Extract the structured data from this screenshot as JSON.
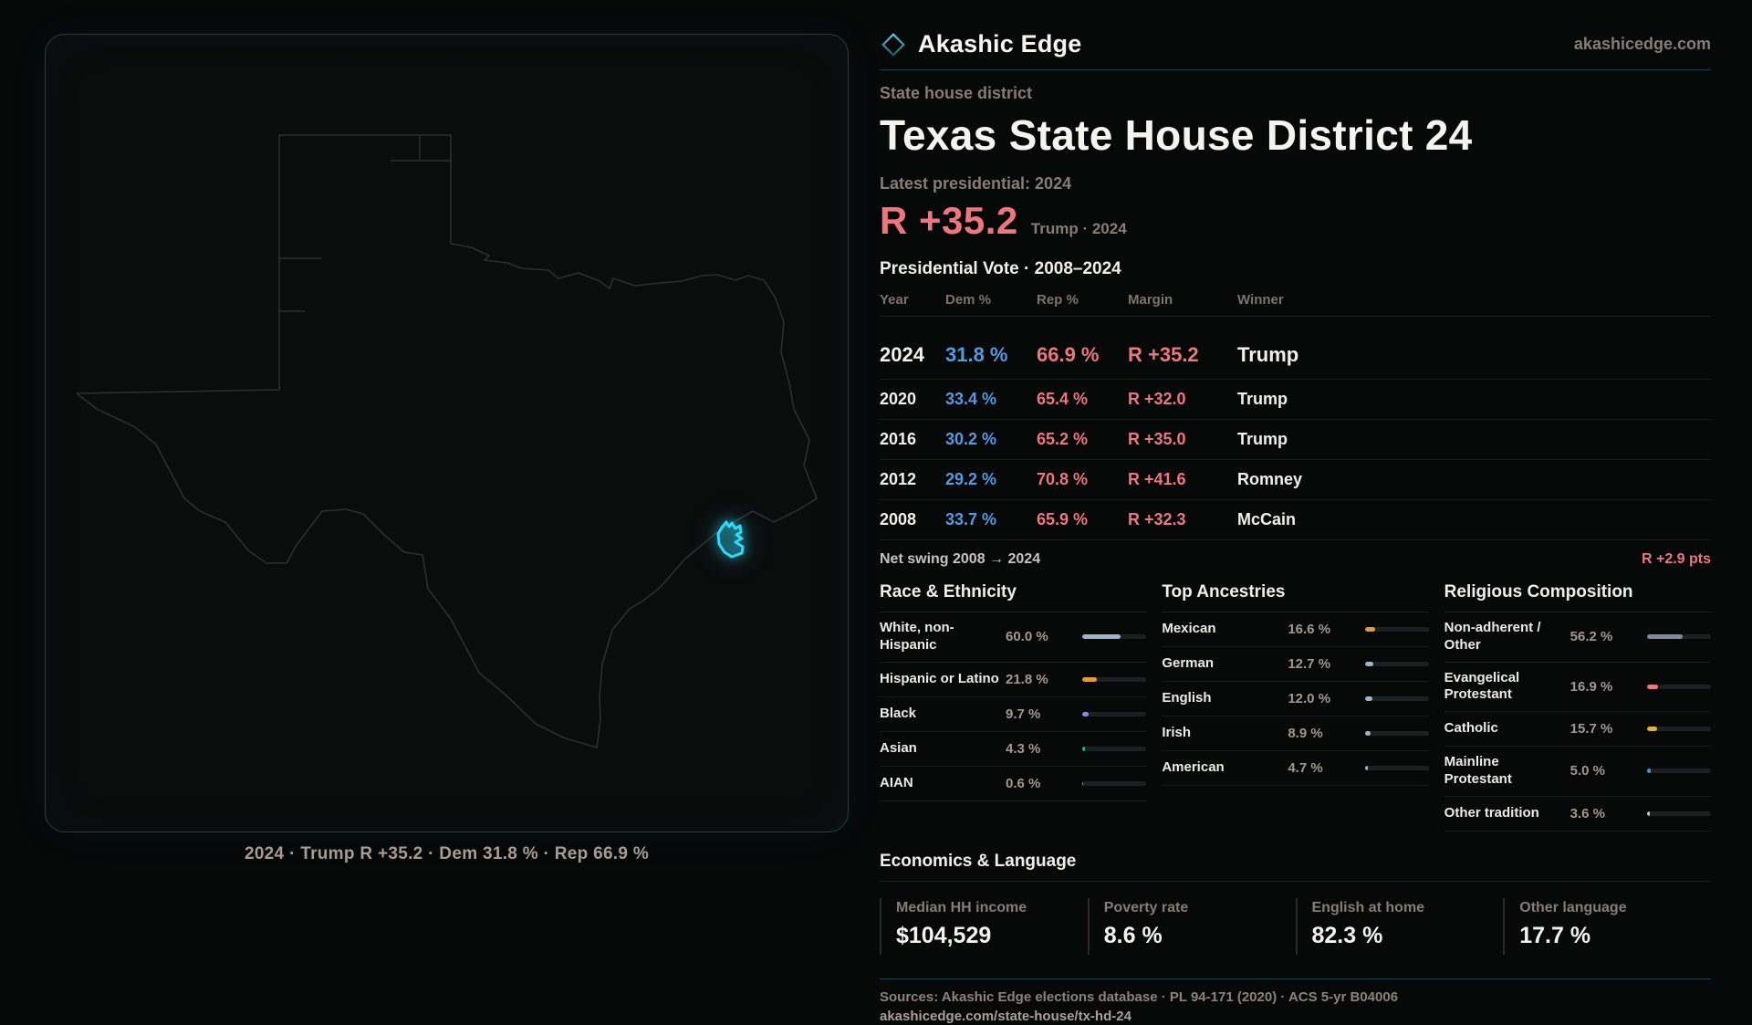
{
  "brand": {
    "name": "Akashic Edge",
    "website": "akashicedge.com"
  },
  "colors": {
    "dem": "#539ae3",
    "rep": "#ee767e",
    "district_cyan": "#2fdbf7",
    "teal_border": "#15444f"
  },
  "page": {
    "kicker": "State house district",
    "title": "Texas State House District 24",
    "latest_label": "Latest presidential: 2024",
    "headline_margin": "R +35.2",
    "headline_context": "Trump · 2024",
    "table_title": "Presidential Vote · 2008–2024"
  },
  "vote_table": {
    "columns": [
      "Year",
      "Dem %",
      "Rep %",
      "Margin",
      "Winner"
    ],
    "rows": [
      {
        "year": "2024",
        "dem": "31.8 %",
        "rep": "66.9 %",
        "margin": "R +35.2",
        "winner": "Trump",
        "highlight": true
      },
      {
        "year": "2020",
        "dem": "33.4 %",
        "rep": "65.4 %",
        "margin": "R +32.0",
        "winner": "Trump",
        "highlight": false
      },
      {
        "year": "2016",
        "dem": "30.2 %",
        "rep": "65.2 %",
        "margin": "R +35.0",
        "winner": "Trump",
        "highlight": false
      },
      {
        "year": "2012",
        "dem": "29.2 %",
        "rep": "70.8 %",
        "margin": "R +41.6",
        "winner": "Romney",
        "highlight": false
      },
      {
        "year": "2008",
        "dem": "33.7 %",
        "rep": "65.9 %",
        "margin": "R +32.3",
        "winner": "McCain",
        "highlight": false
      }
    ]
  },
  "net_swing": {
    "label": "Net swing 2008 → 2024",
    "value": "R +2.9 pts"
  },
  "demographics": [
    {
      "title": "Race & Ethnicity",
      "rows": [
        {
          "label": "White, non-Hispanic",
          "value": "60.0 %",
          "pct": 60.0,
          "color": "#9fb4cc"
        },
        {
          "label": "Hispanic or Latino",
          "value": "21.8 %",
          "pct": 21.8,
          "color": "#e09c3a"
        },
        {
          "label": "Black",
          "value": "9.7 %",
          "pct": 9.7,
          "color": "#9387e0"
        },
        {
          "label": "Asian",
          "value": "4.3 %",
          "pct": 4.3,
          "color": "#2db487"
        },
        {
          "label": "AIAN",
          "value": "0.6 %",
          "pct": 0.6,
          "color": "#8a9aa8"
        }
      ]
    },
    {
      "title": "Top Ancestries",
      "rows": [
        {
          "label": "Mexican",
          "value": "16.6 %",
          "pct": 16.6,
          "color": "#e09c3a"
        },
        {
          "label": "German",
          "value": "12.7 %",
          "pct": 12.7,
          "color": "#9fb4cc"
        },
        {
          "label": "English",
          "value": "12.0 %",
          "pct": 12.0,
          "color": "#9fb4cc"
        },
        {
          "label": "Irish",
          "value": "8.9 %",
          "pct": 8.9,
          "color": "#9fb4cc"
        },
        {
          "label": "American",
          "value": "4.7 %",
          "pct": 4.7,
          "color": "#9fb4cc"
        }
      ]
    },
    {
      "title": "Religious Composition",
      "rows": [
        {
          "label": "Non-adherent / Other",
          "value": "56.2 %",
          "pct": 56.2,
          "color": "#7d8a99"
        },
        {
          "label": "Evangelical Protestant",
          "value": "16.9 %",
          "pct": 16.9,
          "color": "#e87b7b"
        },
        {
          "label": "Catholic",
          "value": "15.7 %",
          "pct": 15.7,
          "color": "#e0b23a"
        },
        {
          "label": "Mainline Protestant",
          "value": "5.0 %",
          "pct": 5.0,
          "color": "#4f8fe8"
        },
        {
          "label": "Other tradition",
          "value": "3.6 %",
          "pct": 3.6,
          "color": "#c9c9c9"
        }
      ]
    }
  ],
  "economics": {
    "title": "Economics & Language",
    "stats": [
      {
        "label": "Median HH income",
        "value": "$104,529"
      },
      {
        "label": "Poverty rate",
        "value": "8.6 %"
      },
      {
        "label": "English at home",
        "value": "82.3 %"
      },
      {
        "label": "Other language",
        "value": "17.7 %"
      }
    ]
  },
  "footer": {
    "sources": "Sources: Akashic Edge elections database · PL 94-171 (2020) · ACS 5-yr B04006",
    "permalink": "akashicedge.com/state-house/tx-hd-24"
  },
  "map": {
    "caption": "2024 · Trump R +35.2 · Dem 31.8 % · Rep 66.9 %"
  }
}
